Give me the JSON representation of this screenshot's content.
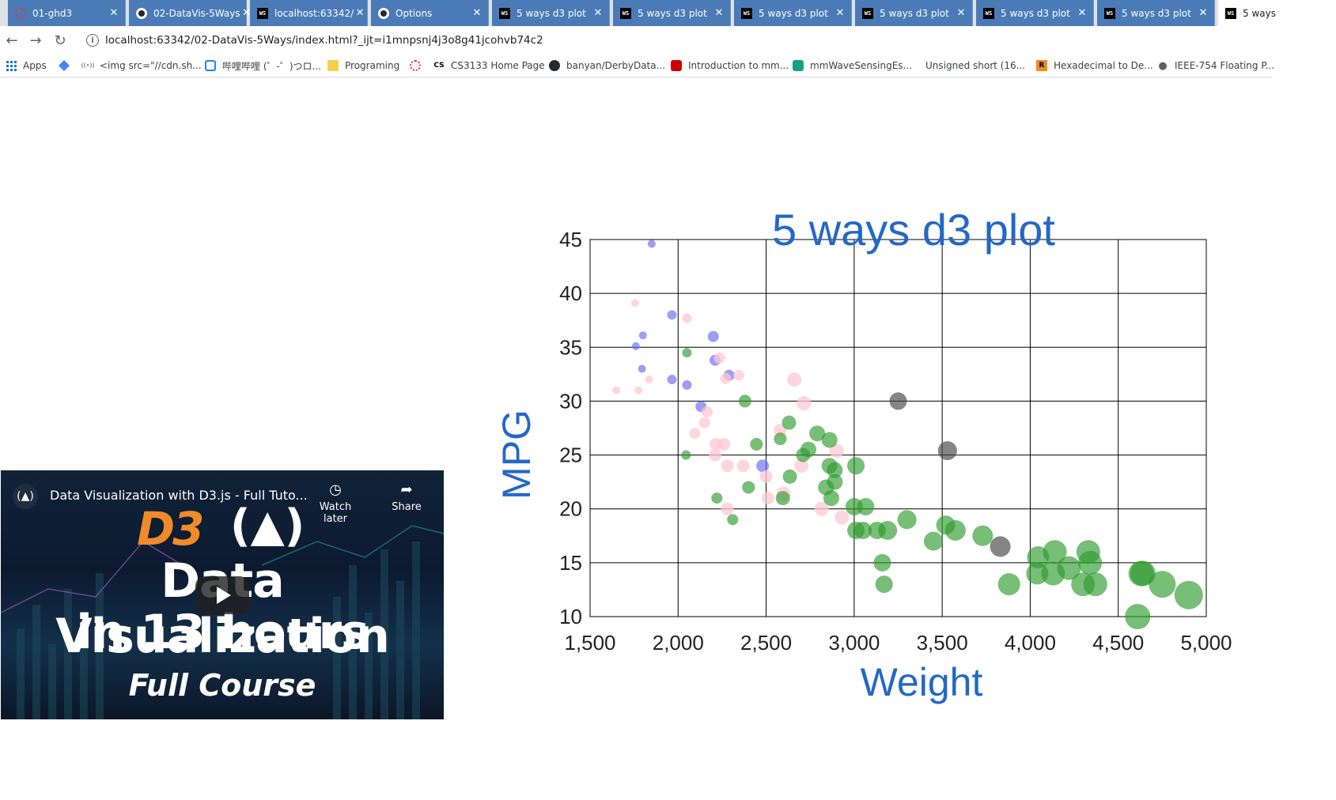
{
  "browser": {
    "tabs": [
      {
        "title": "01-ghd3",
        "icon": "red-circle-icon",
        "active": false
      },
      {
        "title": "02-DataVis-5Ways",
        "icon": "github-icon",
        "active": false
      },
      {
        "title": "localhost:63342/",
        "icon": "webstorm-icon",
        "active": false
      },
      {
        "title": "Options",
        "icon": "github-icon",
        "active": false
      },
      {
        "title": "5 ways d3 plot",
        "icon": "webstorm-icon",
        "active": false
      },
      {
        "title": "5 ways d3 plot",
        "icon": "webstorm-icon",
        "active": false
      },
      {
        "title": "5 ways d3 plot",
        "icon": "webstorm-icon",
        "active": false
      },
      {
        "title": "5 ways d3 plot",
        "icon": "webstorm-icon",
        "active": false
      },
      {
        "title": "5 ways d3 plot",
        "icon": "webstorm-icon",
        "active": false
      },
      {
        "title": "5 ways d3 plot",
        "icon": "webstorm-icon",
        "active": false
      },
      {
        "title": "5 ways",
        "icon": "webstorm-icon",
        "active": true
      }
    ],
    "url": "localhost:63342/02-DataVis-5Ways/index.html?_ijt=i1mnpsnj4j3o8g41jcohvb74c2",
    "bookmarks": [
      {
        "label": "Apps",
        "icon": "apps-grid-icon"
      },
      {
        "label": "",
        "icon": "bookmark-shape-icon"
      },
      {
        "label": "<img src=\"//cdn.sh...",
        "icon": "radio-waves-icon"
      },
      {
        "label": "哔哩哔哩 (゜-゜)つロ...",
        "icon": "bilibili-icon"
      },
      {
        "label": "Programing",
        "icon": "folder-icon"
      },
      {
        "label": "",
        "icon": "red-circle-icon"
      },
      {
        "label": "CS3133 Home Page",
        "icon": "cs-icon"
      },
      {
        "label": "banyan/DerbyData...",
        "icon": "github-icon"
      },
      {
        "label": "Introduction to mm...",
        "icon": "ti-icon"
      },
      {
        "label": "mmWaveSensingEs...",
        "icon": "teal-icon"
      },
      {
        "label": "Unsigned short (16...",
        "icon": ""
      },
      {
        "label": "Hexadecimal to De...",
        "icon": "r-icon"
      },
      {
        "label": "IEEE-754 Floating P...",
        "icon": "globe-icon"
      }
    ]
  },
  "video": {
    "title": "Data Visualization with D3.js - Full Tuto...",
    "watch_later": "Watch later",
    "share": "Share",
    "logo_d3": "D3",
    "line1": "Data Visualization",
    "line2": "in 13 hours",
    "line3": "Full Course"
  },
  "colors": {
    "title_blue": "#2468c6",
    "green": "#2e9b2e",
    "pink": "#ffc8d2",
    "blue": "#6a6af2",
    "gray": "#444444"
  },
  "chart_data": {
    "type": "scatter",
    "title": "5 ways d3 plot",
    "xlabel": "Weight",
    "ylabel": "MPG",
    "xlim": [
      1500,
      5000
    ],
    "ylim": [
      10,
      45
    ],
    "xticks": [
      "1,500",
      "2,000",
      "2,500",
      "3,000",
      "3,500",
      "4,000",
      "4,500",
      "5,000"
    ],
    "yticks": [
      "10",
      "15",
      "20",
      "25",
      "30",
      "35",
      "40",
      "45"
    ],
    "grid": true,
    "series": [
      {
        "color": "blue",
        "points": [
          {
            "x": 1850,
            "y": 44.6,
            "r": 5
          },
          {
            "x": 1800,
            "y": 36.1,
            "r": 5
          },
          {
            "x": 1760,
            "y": 35.1,
            "r": 5
          },
          {
            "x": 1795,
            "y": 33.0,
            "r": 5
          },
          {
            "x": 1965,
            "y": 38.0,
            "r": 6
          },
          {
            "x": 1965,
            "y": 32.0,
            "r": 6
          },
          {
            "x": 2050,
            "y": 31.5,
            "r": 6
          },
          {
            "x": 2200,
            "y": 36.0,
            "r": 7
          },
          {
            "x": 2210,
            "y": 33.8,
            "r": 7
          },
          {
            "x": 2290,
            "y": 32.4,
            "r": 7
          },
          {
            "x": 2130,
            "y": 29.5,
            "r": 7
          },
          {
            "x": 2480,
            "y": 24.0,
            "r": 8
          }
        ]
      },
      {
        "color": "pink",
        "points": [
          {
            "x": 1755,
            "y": 39.1,
            "r": 5
          },
          {
            "x": 1650,
            "y": 31.0,
            "r": 5
          },
          {
            "x": 1775,
            "y": 31.0,
            "r": 5
          },
          {
            "x": 1835,
            "y": 32.0,
            "r": 5
          },
          {
            "x": 2050,
            "y": 37.7,
            "r": 6
          },
          {
            "x": 2235,
            "y": 34.0,
            "r": 7
          },
          {
            "x": 2270,
            "y": 32.1,
            "r": 7
          },
          {
            "x": 2345,
            "y": 32.4,
            "r": 7
          },
          {
            "x": 2165,
            "y": 29.0,
            "r": 7
          },
          {
            "x": 2150,
            "y": 28.0,
            "r": 7
          },
          {
            "x": 2095,
            "y": 27.0,
            "r": 7
          },
          {
            "x": 2215,
            "y": 26.0,
            "r": 8
          },
          {
            "x": 2260,
            "y": 26.0,
            "r": 8
          },
          {
            "x": 2210,
            "y": 25.0,
            "r": 8
          },
          {
            "x": 2280,
            "y": 24.0,
            "r": 8
          },
          {
            "x": 2370,
            "y": 24.0,
            "r": 8
          },
          {
            "x": 2280,
            "y": 20.0,
            "r": 8
          },
          {
            "x": 2500,
            "y": 23.0,
            "r": 8
          },
          {
            "x": 2510,
            "y": 21.0,
            "r": 8
          },
          {
            "x": 2580,
            "y": 27.3,
            "r": 8
          },
          {
            "x": 2660,
            "y": 32.0,
            "r": 9
          },
          {
            "x": 2715,
            "y": 29.8,
            "r": 9
          },
          {
            "x": 2700,
            "y": 24.0,
            "r": 9
          },
          {
            "x": 2600,
            "y": 21.4,
            "r": 9
          },
          {
            "x": 2815,
            "y": 20.0,
            "r": 9
          },
          {
            "x": 2900,
            "y": 25.4,
            "r": 9
          },
          {
            "x": 2930,
            "y": 19.2,
            "r": 9
          }
        ]
      },
      {
        "color": "green",
        "points": [
          {
            "x": 2050,
            "y": 34.5,
            "r": 6
          },
          {
            "x": 2045,
            "y": 25.0,
            "r": 6
          },
          {
            "x": 2220,
            "y": 21.0,
            "r": 7
          },
          {
            "x": 2310,
            "y": 19.0,
            "r": 7
          },
          {
            "x": 2380,
            "y": 30.0,
            "r": 8
          },
          {
            "x": 2400,
            "y": 22.0,
            "r": 8
          },
          {
            "x": 2445,
            "y": 26.0,
            "r": 8
          },
          {
            "x": 2580,
            "y": 26.5,
            "r": 8
          },
          {
            "x": 2630,
            "y": 28.0,
            "r": 9
          },
          {
            "x": 2595,
            "y": 21.0,
            "r": 9
          },
          {
            "x": 2635,
            "y": 23.0,
            "r": 9
          },
          {
            "x": 2710,
            "y": 25.0,
            "r": 9
          },
          {
            "x": 2740,
            "y": 25.5,
            "r": 10
          },
          {
            "x": 2790,
            "y": 27.0,
            "r": 10
          },
          {
            "x": 2860,
            "y": 26.4,
            "r": 10
          },
          {
            "x": 2860,
            "y": 24.0,
            "r": 10
          },
          {
            "x": 2890,
            "y": 23.6,
            "r": 10
          },
          {
            "x": 2840,
            "y": 22.0,
            "r": 10
          },
          {
            "x": 2890,
            "y": 22.5,
            "r": 10
          },
          {
            "x": 2870,
            "y": 21.0,
            "r": 10
          },
          {
            "x": 3000,
            "y": 20.2,
            "r": 11
          },
          {
            "x": 3010,
            "y": 18.0,
            "r": 11
          },
          {
            "x": 3010,
            "y": 24.0,
            "r": 11
          },
          {
            "x": 3050,
            "y": 18.0,
            "r": 11
          },
          {
            "x": 3065,
            "y": 20.2,
            "r": 11
          },
          {
            "x": 3130,
            "y": 18.0,
            "r": 11
          },
          {
            "x": 3190,
            "y": 18.0,
            "r": 12
          },
          {
            "x": 3160,
            "y": 15.0,
            "r": 11
          },
          {
            "x": 3170,
            "y": 13.0,
            "r": 11
          },
          {
            "x": 3300,
            "y": 19.0,
            "r": 12
          },
          {
            "x": 3450,
            "y": 17.0,
            "r": 12
          },
          {
            "x": 3520,
            "y": 18.5,
            "r": 12
          },
          {
            "x": 3575,
            "y": 18.0,
            "r": 13
          },
          {
            "x": 3730,
            "y": 17.5,
            "r": 13
          },
          {
            "x": 3880,
            "y": 13.0,
            "r": 14
          },
          {
            "x": 4045,
            "y": 15.5,
            "r": 14
          },
          {
            "x": 4040,
            "y": 14.0,
            "r": 14
          },
          {
            "x": 4140,
            "y": 16.0,
            "r": 15
          },
          {
            "x": 4130,
            "y": 14.0,
            "r": 15
          },
          {
            "x": 4220,
            "y": 14.5,
            "r": 15
          },
          {
            "x": 4330,
            "y": 16.0,
            "r": 15
          },
          {
            "x": 4340,
            "y": 15.0,
            "r": 15
          },
          {
            "x": 4300,
            "y": 13.0,
            "r": 15
          },
          {
            "x": 4370,
            "y": 13.0,
            "r": 15
          },
          {
            "x": 4630,
            "y": 14.0,
            "r": 16
          },
          {
            "x": 4640,
            "y": 14.0,
            "r": 16
          },
          {
            "x": 4750,
            "y": 13.0,
            "r": 17
          },
          {
            "x": 4900,
            "y": 12.0,
            "r": 18
          },
          {
            "x": 4610,
            "y": 10.0,
            "r": 16
          }
        ]
      },
      {
        "color": "gray",
        "points": [
          {
            "x": 3250,
            "y": 30.0,
            "r": 11
          },
          {
            "x": 3530,
            "y": 25.4,
            "r": 12
          },
          {
            "x": 3830,
            "y": 16.5,
            "r": 13
          }
        ]
      }
    ]
  }
}
